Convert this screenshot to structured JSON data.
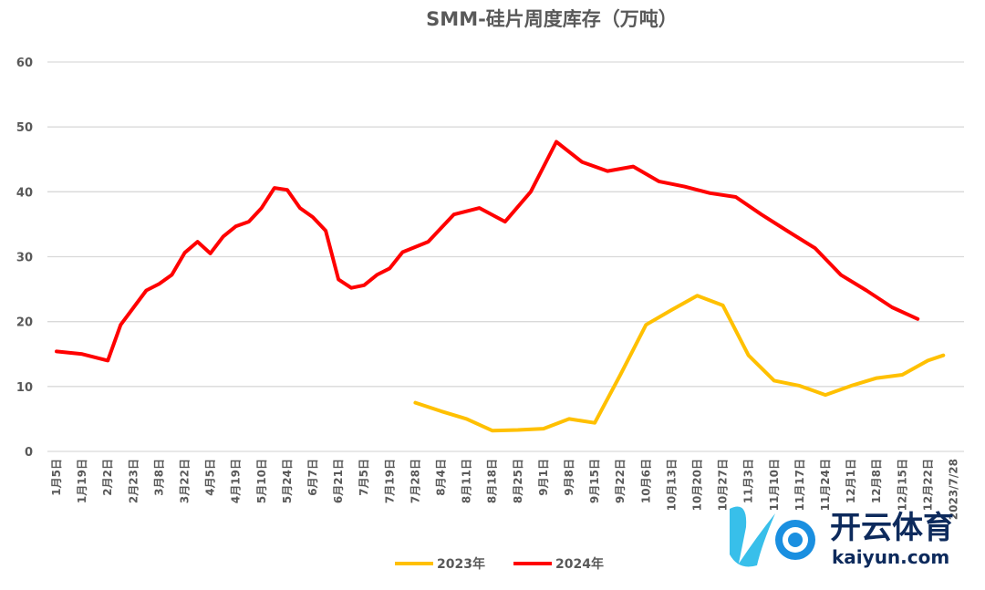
{
  "chart_data": {
    "type": "line",
    "title": "SMM-硅片周度库存（万吨）",
    "xlabel": "",
    "ylabel": "",
    "ylim": [
      0,
      60
    ],
    "yticks": [
      0,
      10,
      20,
      30,
      40,
      50,
      60
    ],
    "grid": true,
    "legend_position": "bottom",
    "categories": [
      "1月5日",
      "1月19日",
      "2月2日",
      "2月23日",
      "3月8日",
      "3月22日",
      "4月5日",
      "4月19日",
      "5月10日",
      "5月24日",
      "6月7日",
      "6月21日",
      "7月5日",
      "7月19日",
      "7月28日",
      "8月4日",
      "8月11日",
      "8月18日",
      "8月25日",
      "9月1日",
      "9月8日",
      "9月15日",
      "9月22日",
      "10月6日",
      "10月13日",
      "10月20日",
      "10月27日",
      "11月3日",
      "11月10日",
      "11月17日",
      "11月24日",
      "12月1日",
      "12月8日",
      "12月15日",
      "12月22日",
      "2023/7/28"
    ],
    "series": [
      {
        "name": "2023年",
        "color": "#FFC000",
        "points": [
          [
            14,
            7.5
          ],
          [
            15,
            6.2
          ],
          [
            16,
            5
          ],
          [
            17,
            3.2
          ],
          [
            18,
            3.3
          ],
          [
            19,
            3.5
          ],
          [
            20,
            5
          ],
          [
            21,
            4.4
          ],
          [
            22,
            11.8
          ],
          [
            23,
            19.5
          ],
          [
            24,
            21.8
          ],
          [
            25,
            24
          ],
          [
            26,
            22.5
          ],
          [
            27,
            14.8
          ],
          [
            28,
            10.9
          ],
          [
            29,
            10.1
          ],
          [
            30,
            8.7
          ],
          [
            31,
            10.1
          ],
          [
            32,
            11.3
          ],
          [
            33,
            11.8
          ],
          [
            34,
            14
          ],
          [
            34.6,
            14.8
          ]
        ]
      },
      {
        "name": "2024年",
        "color": "#FF0000",
        "points": [
          [
            0,
            15.4
          ],
          [
            1,
            15
          ],
          [
            2,
            14
          ],
          [
            2.5,
            19.5
          ],
          [
            3.5,
            24.8
          ],
          [
            4,
            25.8
          ],
          [
            4.5,
            27.2
          ],
          [
            5,
            30.6
          ],
          [
            5.5,
            32.3
          ],
          [
            6,
            30.5
          ],
          [
            6.5,
            33.1
          ],
          [
            7,
            34.7
          ],
          [
            7.5,
            35.4
          ],
          [
            8,
            37.5
          ],
          [
            8.5,
            40.6
          ],
          [
            9,
            40.3
          ],
          [
            9.5,
            37.5
          ],
          [
            10,
            36.1
          ],
          [
            10.5,
            34
          ],
          [
            11,
            26.5
          ],
          [
            11.5,
            25.2
          ],
          [
            12,
            25.6
          ],
          [
            12.5,
            27.2
          ],
          [
            13,
            28.2
          ],
          [
            13.5,
            30.7
          ],
          [
            14.5,
            32.3
          ],
          [
            15.5,
            36.5
          ],
          [
            16.5,
            37.5
          ],
          [
            17.5,
            35.4
          ],
          [
            18.5,
            40
          ],
          [
            19.5,
            47.7
          ],
          [
            20.5,
            44.6
          ],
          [
            21.5,
            43.2
          ],
          [
            22.5,
            43.9
          ],
          [
            23.5,
            41.6
          ],
          [
            24.5,
            40.8
          ],
          [
            25.5,
            39.8
          ],
          [
            26.5,
            39.2
          ],
          [
            27.5,
            36.5
          ],
          [
            28.5,
            34
          ],
          [
            29.6,
            31.3
          ],
          [
            30.6,
            27.2
          ],
          [
            31.6,
            24.8
          ],
          [
            32.6,
            22.2
          ],
          [
            33.6,
            20.4
          ]
        ]
      }
    ]
  },
  "watermark": {
    "name": "开云体育",
    "domain": "kaiyun.com"
  }
}
